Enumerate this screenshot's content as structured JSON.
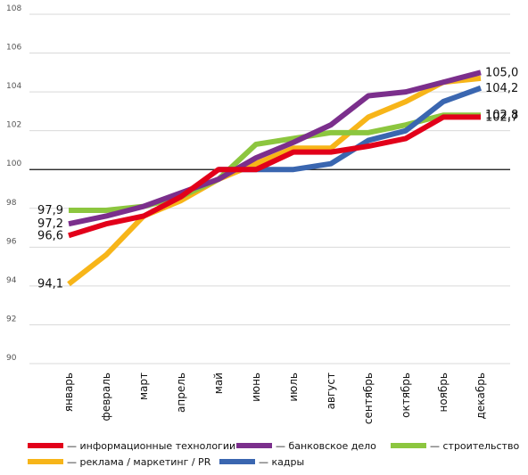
{
  "chart_data": {
    "type": "line",
    "categories": [
      "январь",
      "февраль",
      "март",
      "апрель",
      "май",
      "июнь",
      "июль",
      "август",
      "сентябрь",
      "октябрь",
      "ноябрь",
      "декабрь"
    ],
    "ylim": [
      90,
      108
    ],
    "yticks": [
      "90",
      "92",
      "94",
      "96",
      "98",
      "100",
      "102",
      "104",
      "106",
      "108"
    ],
    "reference_line": 100,
    "grid": true,
    "legend_position": "bottom",
    "series": [
      {
        "name": "— реклама / маркетинг / PR",
        "color": "#f7b519",
        "values": [
          94.1,
          95.6,
          97.6,
          98.4,
          99.5,
          100.3,
          101.1,
          101.1,
          102.7,
          103.5,
          104.5,
          104.7
        ]
      },
      {
        "name": "— строительство",
        "color": "#8cc63f",
        "values": [
          97.9,
          97.9,
          98.1,
          98.6,
          99.5,
          101.3,
          101.6,
          101.9,
          101.9,
          102.3,
          102.8,
          102.8
        ]
      },
      {
        "name": "— кадры",
        "color": "#3a66b0",
        "values": [
          null,
          null,
          null,
          null,
          100.0,
          100.0,
          100.0,
          100.3,
          101.5,
          102.0,
          103.5,
          104.2
        ]
      },
      {
        "name": "— банковское дело",
        "color": "#7b2f8c",
        "values": [
          97.2,
          97.6,
          98.1,
          98.8,
          99.5,
          100.6,
          101.4,
          102.3,
          103.8,
          104.0,
          104.5,
          105.0
        ]
      },
      {
        "name": "— информационные технологии",
        "color": "#e2001a",
        "values": [
          96.6,
          97.2,
          97.6,
          98.6,
          100.0,
          100.0,
          100.9,
          100.9,
          101.2,
          101.6,
          102.7,
          102.7
        ]
      }
    ],
    "data_labels": [
      {
        "text": "97,9",
        "series": 1,
        "index": 0,
        "side": "left"
      },
      {
        "text": "97,2",
        "series": 3,
        "index": 0,
        "side": "left"
      },
      {
        "text": "96,6",
        "series": 4,
        "index": 0,
        "side": "left"
      },
      {
        "text": "94,1",
        "series": 0,
        "index": 0,
        "side": "left"
      },
      {
        "text": "105,0",
        "series": 3,
        "index": 11,
        "side": "right"
      },
      {
        "text": "104,2",
        "series": 2,
        "index": 11,
        "side": "right"
      },
      {
        "text": "102,8",
        "series": 1,
        "index": 11,
        "side": "right"
      },
      {
        "text": "102,7",
        "series": 4,
        "index": 11,
        "side": "right"
      }
    ],
    "legend_order": [
      4,
      3,
      1,
      0,
      2
    ]
  }
}
